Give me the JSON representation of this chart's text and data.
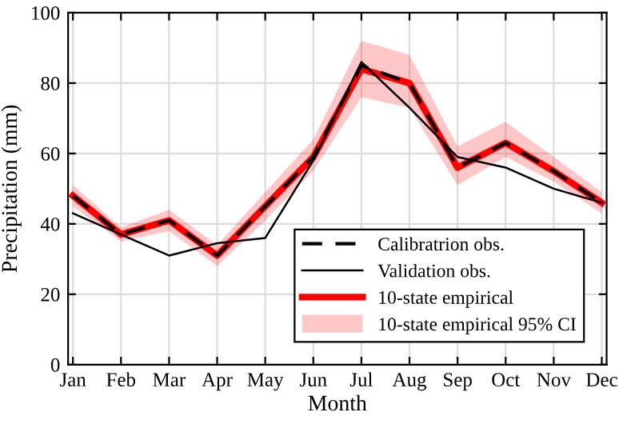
{
  "chart_data": {
    "type": "line",
    "xlabel": "Month",
    "ylabel": "Precipitation (mm)",
    "categories": [
      "Jan",
      "Feb",
      "Mar",
      "Apr",
      "May",
      "Jun",
      "Jul",
      "Aug",
      "Sep",
      "Oct",
      "Nov",
      "Dec"
    ],
    "series": [
      {
        "name": "Calibratrion obs.",
        "color": "#000000",
        "line_style": "dashed",
        "values": [
          48,
          37,
          41,
          31,
          45,
          59,
          85,
          80,
          56,
          63,
          55,
          46
        ]
      },
      {
        "name": "Validation obs.",
        "color": "#000000",
        "line_style": "solid",
        "values": [
          43,
          37,
          31,
          34.5,
          36,
          58,
          86,
          73,
          59,
          56,
          50,
          46
        ]
      },
      {
        "name": "10-state empirical",
        "color": "#ff0000",
        "line_style": "solid",
        "values": [
          48,
          37,
          41,
          31,
          45,
          59,
          84,
          80,
          56,
          63,
          55,
          46
        ],
        "lower": [
          45,
          35,
          38,
          28,
          41,
          55,
          76,
          73,
          51,
          59,
          52,
          43
        ],
        "upper": [
          51,
          39,
          44,
          34,
          49,
          64,
          92,
          88,
          62,
          69,
          59,
          49
        ]
      }
    ],
    "annotations": [
      "10-state empirical 95% CI"
    ],
    "ylim": [
      0,
      100
    ],
    "yticks": [
      0,
      20,
      40,
      60,
      80,
      100
    ],
    "grid": true,
    "legend": "bottom right"
  }
}
